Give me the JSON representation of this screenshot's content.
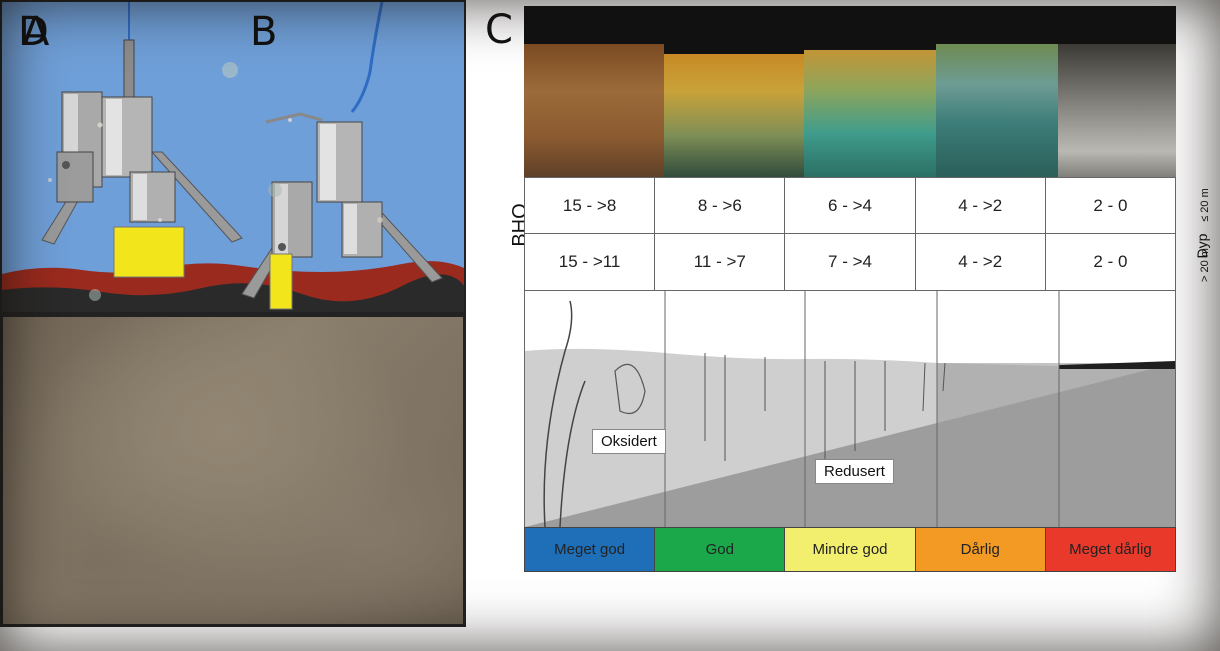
{
  "panels": {
    "a": "A",
    "b": "B",
    "c": "C",
    "d": "D"
  },
  "bhq": {
    "label": "BHQ",
    "row_deep": [
      "15 - >8",
      "8 - >6",
      "6 - >4",
      "4 - >2",
      "2 - 0"
    ],
    "row_shallow": [
      "15 - >11",
      "11 - >7",
      "7 - >4",
      "4 - >2",
      "2 - 0"
    ]
  },
  "depth": {
    "title": "Dyp",
    "deep": "> 20 m",
    "shallow": "≤ 20 m"
  },
  "sediment": {
    "oxidized": "Oksidert",
    "reduced": "Redusert"
  },
  "condition_classes": [
    {
      "label": "Meget god",
      "color": "#1f6fb8"
    },
    {
      "label": "God",
      "color": "#1aa84b"
    },
    {
      "label": "Mindre god",
      "color": "#f3ef6e"
    },
    {
      "label": "Dårlig",
      "color": "#f39a24"
    },
    {
      "label": "Meget dårlig",
      "color": "#e8392b"
    }
  ],
  "colors": {
    "water": "#6f9fd8",
    "sediment_top": "#9a2a1e",
    "sediment_base": "#2a2a2a",
    "sampler_highlight": "#f2e51b",
    "cable": "#2f6cc4"
  }
}
